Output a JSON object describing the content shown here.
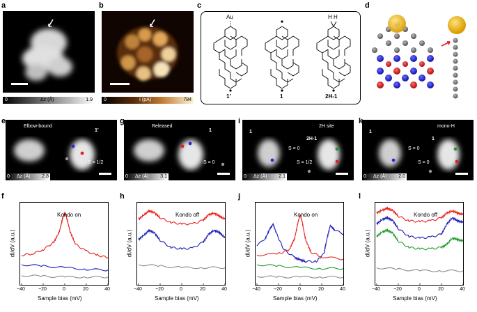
{
  "panels": {
    "a": {
      "letter": "a",
      "cbar_min": "0",
      "cbar_label": "Δz (Å)",
      "cbar_max": "1.9"
    },
    "b": {
      "letter": "b",
      "cbar_min": "0",
      "cbar_label": "I (pA)",
      "cbar_max": "784"
    },
    "c": {
      "letter": "c",
      "mol1_top": "Au",
      "mol1_label": "1′",
      "mol2_label": "1",
      "mol3_top": "H H",
      "mol3_label": "2H-1"
    },
    "d": {
      "letter": "d"
    },
    "e": {
      "letter": "e",
      "tag": "Elbow-bound",
      "mol": "1′",
      "spin": "S = 1/2",
      "cbar_min": "0",
      "cbar_label": "Δz (Å)",
      "cbar_max": "2.8"
    },
    "g": {
      "letter": "g",
      "tag": "Released",
      "mol": "1",
      "spin": "S = 0",
      "cbar_min": "0",
      "cbar_label": "Δz (Å)",
      "cbar_max": "3.1"
    },
    "i": {
      "letter": "i",
      "mol_left": "1",
      "tag": "2H site",
      "mol": "2H-1",
      "spin_left": "S = 0",
      "spin_right": "S = 1/2",
      "cbar_min": "0",
      "cbar_label": "Δz (Å)",
      "cbar_max": "2.1"
    },
    "k": {
      "letter": "k",
      "mol_left": "1",
      "tag": "mono-H",
      "mol": "1",
      "spin_left": "S = 0",
      "spin_right": "S = 0",
      "cbar_min": "0",
      "cbar_label": "Δz (Å)",
      "cbar_max": "2.0"
    },
    "f": {
      "letter": "f",
      "annotation": "Kondo on"
    },
    "h": {
      "letter": "h",
      "annotation": "Kondo off"
    },
    "j": {
      "letter": "j",
      "annotation": "Kondo on"
    },
    "l": {
      "letter": "l",
      "annotation": "Kondo off"
    }
  },
  "plot_axes": {
    "ylabel": "dI/dV (a.u.)",
    "xlabel": "Sample bias (mV)",
    "xticks": [
      "−40",
      "−20",
      "0",
      "20",
      "40"
    ]
  },
  "colors": {
    "red": "#e8201c",
    "blue": "#1a1ab8",
    "green": "#1f9a2a",
    "gray": "#8a8a8a"
  },
  "chart_data": [
    {
      "type": "line",
      "panel": "f",
      "xlim": [
        -40,
        40
      ],
      "series": [
        {
          "color": "red",
          "x": [
            -40,
            -30,
            -20,
            -10,
            -5,
            -2,
            0,
            2,
            5,
            10,
            20,
            30,
            40
          ],
          "y": [
            0.38,
            0.4,
            0.45,
            0.55,
            0.68,
            0.85,
            0.93,
            0.85,
            0.68,
            0.52,
            0.43,
            0.38,
            0.35
          ]
        },
        {
          "color": "blue",
          "x": [
            -40,
            -20,
            0,
            20,
            40
          ],
          "y": [
            0.26,
            0.24,
            0.22,
            0.2,
            0.19
          ]
        },
        {
          "color": "gray",
          "x": [
            -40,
            -20,
            0,
            20,
            40
          ],
          "y": [
            0.12,
            0.11,
            0.1,
            0.1,
            0.1
          ]
        }
      ]
    },
    {
      "type": "line",
      "panel": "h",
      "xlim": [
        -40,
        40
      ],
      "series": [
        {
          "color": "red",
          "x": [
            -40,
            -35,
            -30,
            -25,
            -20,
            -10,
            0,
            10,
            20,
            25,
            30,
            35,
            40
          ],
          "y": [
            0.84,
            0.9,
            0.95,
            0.92,
            0.86,
            0.8,
            0.78,
            0.78,
            0.83,
            0.9,
            0.92,
            0.88,
            0.84
          ]
        },
        {
          "color": "blue",
          "x": [
            -40,
            -35,
            -30,
            -25,
            -20,
            -10,
            0,
            10,
            20,
            25,
            30,
            35,
            40
          ],
          "y": [
            0.58,
            0.64,
            0.7,
            0.66,
            0.57,
            0.48,
            0.46,
            0.47,
            0.55,
            0.65,
            0.7,
            0.67,
            0.6
          ]
        },
        {
          "color": "gray",
          "x": [
            -40,
            -20,
            0,
            20,
            40
          ],
          "y": [
            0.26,
            0.24,
            0.22,
            0.22,
            0.22
          ]
        }
      ]
    },
    {
      "type": "line",
      "panel": "j",
      "xlim": [
        -40,
        40
      ],
      "series": [
        {
          "color": "blue",
          "x": [
            -40,
            -32,
            -28,
            -25,
            -22,
            -15,
            -5,
            0,
            5,
            15,
            22,
            25,
            28,
            32,
            40
          ],
          "y": [
            0.5,
            0.6,
            0.72,
            0.78,
            0.66,
            0.45,
            0.35,
            0.32,
            0.3,
            0.3,
            0.4,
            0.6,
            0.76,
            0.7,
            0.65
          ]
        },
        {
          "color": "red",
          "x": [
            -40,
            -20,
            -10,
            -5,
            -2,
            0,
            2,
            5,
            10,
            20,
            40
          ],
          "y": [
            0.38,
            0.4,
            0.45,
            0.6,
            0.8,
            0.9,
            0.8,
            0.58,
            0.42,
            0.36,
            0.33
          ]
        },
        {
          "color": "green",
          "x": [
            -40,
            -20,
            0,
            20,
            40
          ],
          "y": [
            0.26,
            0.24,
            0.22,
            0.21,
            0.21
          ]
        },
        {
          "color": "gray",
          "x": [
            -40,
            -20,
            0,
            20,
            40
          ],
          "y": [
            0.11,
            0.1,
            0.1,
            0.1,
            0.1
          ]
        }
      ]
    },
    {
      "type": "line",
      "panel": "l",
      "xlim": [
        -40,
        40
      ],
      "series": [
        {
          "color": "red",
          "x": [
            -40,
            -35,
            -30,
            -25,
            -20,
            -10,
            0,
            10,
            20,
            25,
            30,
            35,
            40
          ],
          "y": [
            0.92,
            0.96,
            0.98,
            0.95,
            0.88,
            0.82,
            0.81,
            0.82,
            0.86,
            0.92,
            0.95,
            0.92,
            0.9
          ]
        },
        {
          "color": "blue",
          "x": [
            -40,
            -35,
            -30,
            -25,
            -20,
            -10,
            0,
            10,
            20,
            25,
            30,
            35,
            40
          ],
          "y": [
            0.78,
            0.84,
            0.86,
            0.82,
            0.72,
            0.62,
            0.6,
            0.61,
            0.65,
            0.78,
            0.86,
            0.82,
            0.8
          ]
        },
        {
          "color": "green",
          "x": [
            -40,
            -35,
            -30,
            -25,
            -20,
            -10,
            0,
            10,
            20,
            25,
            30,
            35,
            40
          ],
          "y": [
            0.62,
            0.68,
            0.7,
            0.66,
            0.56,
            0.48,
            0.46,
            0.46,
            0.48,
            0.52,
            0.6,
            0.58,
            0.56
          ]
        },
        {
          "color": "gray",
          "x": [
            -40,
            -20,
            0,
            20,
            40
          ],
          "y": [
            0.22,
            0.2,
            0.18,
            0.18,
            0.18
          ]
        }
      ]
    }
  ]
}
